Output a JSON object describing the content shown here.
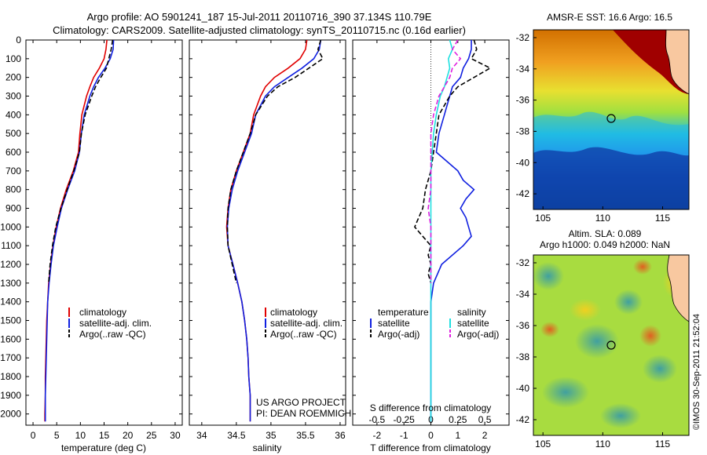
{
  "title": {
    "line1": "Argo profile: AO 5901241_187 15-Jul-2011 20110716_390 37.134S 110.79E",
    "line2": "Climatology: CARS2009. Satellite-adjusted climatology: synTS_20110715.nc (0.16d earlier)"
  },
  "depth_ticks": [
    0,
    100,
    200,
    300,
    400,
    500,
    600,
    700,
    800,
    900,
    1000,
    1100,
    1200,
    1300,
    1400,
    1500,
    1600,
    1700,
    1800,
    1900,
    2000
  ],
  "colors": {
    "climatology": "#e00000",
    "satellite": "#1020e0",
    "argo": "#000000",
    "sal_sat": "#20e0e0",
    "sal_argo": "#e020e0"
  },
  "chart_data": [
    {
      "id": "temperature",
      "type": "line",
      "xlabel": "temperature (deg C)",
      "xticks": [
        0,
        5,
        10,
        15,
        20,
        25,
        30
      ],
      "xlim": [
        -1.5,
        31.5
      ],
      "ylim": [
        0,
        2060
      ],
      "legend": [
        "climatology",
        "satellite-adj. clim.",
        "Argo(..raw -QC)"
      ],
      "series": [
        {
          "name": "climatology",
          "style": "solid",
          "color": "#e00000",
          "depth": [
            0,
            50,
            100,
            150,
            200,
            250,
            300,
            400,
            500,
            600,
            700,
            800,
            900,
            1000,
            1100,
            1200,
            1300,
            1400,
            1500,
            1600,
            1700,
            1800,
            1900,
            2000,
            2040
          ],
          "values": [
            15.6,
            15.4,
            15.0,
            14.0,
            12.8,
            12.0,
            11.3,
            10.3,
            9.9,
            9.6,
            8.5,
            7.0,
            5.8,
            4.9,
            4.2,
            3.7,
            3.3,
            3.1,
            2.9,
            2.8,
            2.7,
            2.6,
            2.6,
            2.5,
            2.5
          ]
        },
        {
          "name": "satellite-adj. clim.",
          "style": "solid",
          "color": "#1020e0",
          "depth": [
            0,
            50,
            100,
            150,
            200,
            250,
            300,
            400,
            500,
            600,
            700,
            800,
            900,
            1000,
            1100,
            1200,
            1300,
            1400,
            1500,
            1600,
            1700,
            1800,
            1900,
            2000,
            2040
          ],
          "values": [
            17.0,
            16.9,
            16.3,
            15.2,
            13.8,
            12.8,
            12.0,
            10.8,
            10.2,
            9.8,
            8.8,
            7.3,
            6.0,
            5.1,
            4.3,
            3.8,
            3.4,
            3.1,
            3.0,
            2.9,
            2.8,
            2.7,
            2.6,
            2.6,
            2.6
          ]
        },
        {
          "name": "Argo(..raw -QC)",
          "style": "dashed",
          "color": "#000000",
          "depth": [
            0,
            50,
            100,
            150,
            200,
            250,
            300,
            400,
            500,
            600,
            700,
            800,
            900,
            1000,
            1100,
            1200,
            1300
          ],
          "values": [
            16.8,
            16.5,
            16.0,
            15.5,
            14.3,
            13.2,
            12.4,
            11.0,
            10.2,
            9.8,
            8.6,
            7.2,
            5.9,
            4.8,
            4.1,
            3.6,
            3.3
          ]
        }
      ]
    },
    {
      "id": "salinity",
      "type": "line",
      "xlabel": "salinity",
      "xticks": [
        "34",
        "34.5",
        "35",
        "35.5",
        "36"
      ],
      "xlim": [
        33.82,
        36.08
      ],
      "ylim": [
        0,
        2060
      ],
      "legend": [
        "climatology",
        "satellite-adj. clim.",
        "Argo(..raw -QC)"
      ],
      "series": [
        {
          "name": "climatology",
          "style": "solid",
          "color": "#e00000",
          "depth": [
            0,
            50,
            100,
            150,
            200,
            250,
            300,
            400,
            500,
            600,
            700,
            800,
            900,
            1000,
            1100,
            1200,
            1300,
            1400,
            1500,
            1600,
            1700,
            1800,
            1900,
            2000,
            2040
          ],
          "values": [
            35.52,
            35.5,
            35.42,
            35.25,
            35.05,
            34.92,
            34.85,
            34.75,
            34.7,
            34.6,
            34.5,
            34.42,
            34.38,
            34.36,
            34.38,
            34.45,
            34.52,
            34.58,
            34.62,
            34.65,
            34.67,
            34.68,
            34.7,
            34.7,
            34.7
          ]
        },
        {
          "name": "satellite-adj. clim.",
          "style": "solid",
          "color": "#1020e0",
          "depth": [
            0,
            50,
            100,
            150,
            200,
            250,
            300,
            400,
            500,
            600,
            700,
            800,
            900,
            1000,
            1100,
            1200,
            1300,
            1400,
            1500,
            1600,
            1700,
            1800,
            1900,
            2000,
            2040
          ],
          "values": [
            35.72,
            35.7,
            35.62,
            35.45,
            35.25,
            35.05,
            34.92,
            34.78,
            34.72,
            34.62,
            34.52,
            34.44,
            34.39,
            34.37,
            34.38,
            34.45,
            34.52,
            34.58,
            34.62,
            34.65,
            34.67,
            34.68,
            34.7,
            34.7,
            34.7
          ]
        },
        {
          "name": "Argo(..raw -QC)",
          "style": "dashed",
          "color": "#000000",
          "depth": [
            0,
            50,
            100,
            150,
            200,
            250,
            300,
            400,
            500,
            600,
            700,
            800,
            900,
            1000,
            1100,
            1200,
            1300
          ],
          "values": [
            35.72,
            35.68,
            35.75,
            35.55,
            35.35,
            35.1,
            34.95,
            34.78,
            34.7,
            34.6,
            34.5,
            34.42,
            34.38,
            34.37,
            34.38,
            34.44,
            34.5
          ]
        }
      ]
    },
    {
      "id": "difference",
      "type": "line",
      "xlabel": "T difference from climatology",
      "xlabel_top": "S difference from climatology",
      "xticks": [
        "-2",
        "-1",
        "0",
        "1",
        "2"
      ],
      "xticks_top": [
        "-0.5",
        "-0.25",
        "0",
        "0.25",
        "0.5"
      ],
      "xlim": [
        -2.9,
        2.9
      ],
      "ylim": [
        0,
        2060
      ],
      "legend_temperature": {
        "title": "temperature",
        "items": [
          "satellite",
          "Argo(-adj)"
        ]
      },
      "legend_salinity": {
        "title": "salinity",
        "items": [
          "satellite",
          "Argo(-adj)"
        ]
      },
      "series": [
        {
          "name": "satellite",
          "quantity": "temperature",
          "style": "solid",
          "color": "#1020e0",
          "depth": [
            0,
            50,
            100,
            150,
            200,
            250,
            300,
            350,
            400,
            500,
            600,
            650,
            700,
            750,
            800,
            850,
            900,
            950,
            1000,
            1050,
            1100,
            1200,
            1300,
            1400,
            1500,
            1600,
            1800,
            2000,
            2040
          ],
          "values": [
            1.5,
            1.5,
            1.4,
            1.2,
            1.1,
            0.8,
            0.7,
            0.6,
            0.5,
            0.3,
            0.2,
            0.6,
            1.0,
            1.2,
            1.6,
            1.3,
            1.1,
            1.3,
            1.4,
            1.5,
            1.2,
            0.4,
            0.1,
            0.0,
            0.0,
            0.0,
            0.0,
            0.0,
            0.0
          ]
        },
        {
          "name": "Argo(-adj)",
          "quantity": "temperature",
          "style": "dashed",
          "color": "#000000",
          "depth": [
            0,
            50,
            100,
            150,
            200,
            250,
            300,
            400,
            500,
            600,
            700,
            800,
            900,
            1000,
            1050,
            1100,
            1150,
            1200,
            1250,
            1300
          ],
          "values": [
            1.6,
            1.7,
            1.5,
            2.2,
            1.6,
            1.0,
            0.7,
            0.3,
            0.2,
            0.1,
            0.0,
            -0.2,
            -0.3,
            -0.6,
            -0.3,
            0.0,
            -0.1,
            0.0,
            -0.1,
            0.0
          ]
        },
        {
          "name": "satellite",
          "quantity": "salinity",
          "style": "solid",
          "color": "#20e0e0",
          "depth": [
            0,
            50,
            100,
            150,
            200,
            250,
            300,
            400,
            500,
            600,
            700,
            800,
            900,
            1000,
            1200,
            1400,
            1600,
            1800,
            2040
          ],
          "values": [
            0.7,
            0.8,
            0.65,
            0.7,
            0.6,
            0.5,
            0.35,
            0.2,
            0.1,
            0.05,
            0.0,
            0.0,
            0.0,
            0.0,
            0.0,
            0.0,
            0.0,
            0.0,
            0.0
          ]
        },
        {
          "name": "Argo(-adj)",
          "quantity": "salinity",
          "style": "dashed",
          "color": "#e020e0",
          "depth": [
            0,
            50,
            100,
            150,
            200,
            250,
            300,
            400,
            500,
            600,
            700,
            800,
            900,
            1000,
            1100,
            1200,
            1300
          ],
          "values": [
            1.0,
            0.8,
            1.1,
            0.8,
            0.7,
            0.5,
            0.3,
            0.1,
            0.0,
            0.0,
            0.0,
            0.0,
            -0.1,
            0.0,
            0.0,
            0.0,
            0.0
          ]
        }
      ]
    },
    {
      "id": "sst_map",
      "type": "heatmap",
      "title": "AMSR-E SST: 16.6 Argo: 16.5",
      "xticks": [
        "105",
        "110",
        "115"
      ],
      "yticks": [
        "-32",
        "-34",
        "-36",
        "-38",
        "-40",
        "-42"
      ],
      "xlim": [
        104.2,
        117.2
      ],
      "ylim": [
        -43.0,
        -31.5
      ],
      "marker": {
        "lon": 110.79,
        "lat": -37.134
      }
    },
    {
      "id": "sla_map",
      "type": "heatmap",
      "title_line1": "Altim. SLA: 0.089",
      "title_line2": "Argo h1000: 0.049 h2000: NaN",
      "xticks": [
        "105",
        "110",
        "115"
      ],
      "yticks": [
        "-32",
        "-34",
        "-36",
        "-38",
        "-40",
        "-42"
      ],
      "xlim": [
        104.2,
        117.2
      ],
      "ylim": [
        -43.0,
        -31.5
      ],
      "marker": {
        "lon": 110.79,
        "lat": -37.134
      }
    }
  ],
  "annotations": {
    "project_line1": "US ARGO PROJECT",
    "project_line2": "PI: DEAN ROEMMICH",
    "imos": "©IMOS 30-Sep-2011 21:52:04"
  }
}
